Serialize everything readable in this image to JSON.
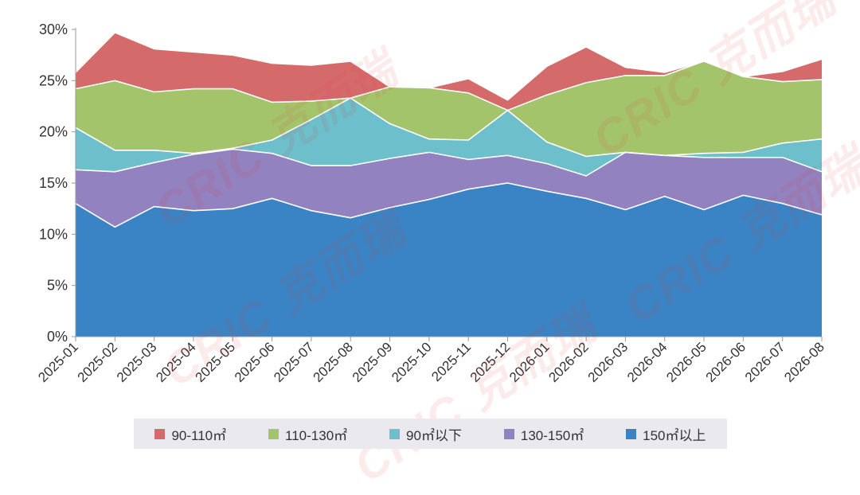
{
  "chart_data": {
    "type": "area",
    "stacked": true,
    "x": [
      "2025-01",
      "2025-02",
      "2025-03",
      "2025-04",
      "2025-05",
      "2025-06",
      "2025-07",
      "2025-08",
      "2025-09",
      "2025-10",
      "2025-11",
      "2025-12",
      "2026-01",
      "2026-02",
      "2026-03",
      "2026-04",
      "2026-05",
      "2026-06",
      "2026-07",
      "2026-08"
    ],
    "ylim": [
      0,
      30
    ],
    "yticks": [
      "0%",
      "5%",
      "10%",
      "15%",
      "20%",
      "25%",
      "30%"
    ],
    "series": [
      {
        "name": "150㎡以上",
        "color": "#3a84c5",
        "values": [
          13.0,
          10.7,
          12.7,
          12.3,
          12.5,
          13.5,
          12.3,
          11.6,
          12.6,
          13.4,
          14.4,
          15.0,
          14.2,
          13.5,
          12.4,
          13.7,
          12.4,
          13.8,
          13.0,
          11.9
        ]
      },
      {
        "name": "130-150㎡",
        "color": "#9282bf",
        "values": [
          3.3,
          5.4,
          4.3,
          5.5,
          5.8,
          4.4,
          4.4,
          5.1,
          4.8,
          4.6,
          2.9,
          2.7,
          2.7,
          2.2,
          5.6,
          4.0,
          5.1,
          3.7,
          4.5,
          4.2
        ]
      },
      {
        "name": "90㎡以下",
        "color": "#6cbfcb",
        "values": [
          4.1,
          2.1,
          1.2,
          0.1,
          0.1,
          1.3,
          4.5,
          6.6,
          3.4,
          1.3,
          1.9,
          4.4,
          2.1,
          1.9,
          0.0,
          0.0,
          0.4,
          0.5,
          1.4,
          3.2
        ]
      },
      {
        "name": "110-130㎡",
        "color": "#a3c46b",
        "values": [
          3.8,
          6.8,
          5.7,
          6.3,
          5.8,
          3.7,
          1.8,
          0.0,
          3.6,
          5.0,
          4.6,
          0.0,
          4.6,
          7.2,
          7.5,
          7.8,
          9.0,
          7.4,
          6.0,
          5.8
        ]
      },
      {
        "name": "90-110㎡",
        "color": "#d56a6b",
        "values": [
          1.6,
          4.7,
          4.2,
          3.6,
          3.3,
          3.8,
          3.5,
          3.6,
          0.0,
          0.0,
          1.4,
          1.0,
          2.8,
          3.5,
          0.8,
          0.3,
          0.0,
          0.0,
          1.0,
          2.0
        ]
      }
    ],
    "legend_order": [
      "90-110㎡",
      "110-130㎡",
      "90㎡以下",
      "130-150㎡",
      "150㎡以上"
    ],
    "legend_position": "bottom",
    "grid": false
  },
  "legend": [
    {
      "label": "90-110㎡",
      "color": "#d56a6b"
    },
    {
      "label": "110-130㎡",
      "color": "#a3c46b"
    },
    {
      "label": "90㎡以下",
      "color": "#6cbfcb"
    },
    {
      "label": "130-150㎡",
      "color": "#9282bf"
    },
    {
      "label": "150㎡以上",
      "color": "#3a84c5"
    }
  ],
  "watermark": "CRIC 克而瑞"
}
